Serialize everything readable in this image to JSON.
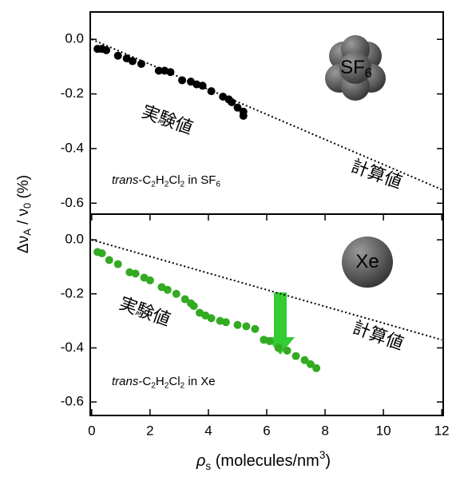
{
  "chart_data": [
    {
      "type": "scatter",
      "ylabel": [
        {
          "text": "Δν"
        },
        {
          "text": "A",
          "sub": true
        },
        {
          "text": " / ν"
        },
        {
          "text": "0",
          "sub": true
        },
        {
          "text": " (%)"
        }
      ],
      "xlim": [
        -0.05,
        12.05
      ],
      "ylim": [
        -0.64,
        0.1
      ],
      "yticks": [
        {
          "value": 0,
          "label": "0.0"
        },
        -0.2,
        -0.4,
        -0.6
      ],
      "molecule_label": [
        {
          "text": "SF"
        },
        {
          "text": "6",
          "sub": true
        }
      ],
      "sample_label": [
        {
          "text": "trans",
          "italic": true
        },
        {
          "text": "-C"
        },
        {
          "text": "2",
          "sub": true
        },
        {
          "text": "H"
        },
        {
          "text": "2",
          "sub": true
        },
        {
          "text": "Cl"
        },
        {
          "text": "2",
          "sub": true
        },
        {
          "text": " in SF"
        },
        {
          "text": "6",
          "sub": true
        }
      ],
      "series": [
        {
          "name": "実験値",
          "color": "#000000",
          "style": "dots",
          "x": [
            0.2,
            0.35,
            0.5,
            0.9,
            1.2,
            1.4,
            1.7,
            2.3,
            2.5,
            2.7,
            3.1,
            3.4,
            3.6,
            3.8,
            4.1,
            4.5,
            4.7,
            4.8,
            5.0,
            5.2,
            5.2
          ],
          "values": [
            -0.035,
            -0.035,
            -0.04,
            -0.06,
            -0.07,
            -0.08,
            -0.09,
            -0.115,
            -0.115,
            -0.12,
            -0.15,
            -0.155,
            -0.165,
            -0.17,
            -0.19,
            -0.21,
            -0.22,
            -0.23,
            -0.25,
            -0.265,
            -0.28
          ]
        },
        {
          "name": "計算値",
          "color": "#000000",
          "style": "dotted-line",
          "x": [
            0,
            12
          ],
          "values": [
            0,
            -0.55
          ]
        }
      ]
    },
    {
      "type": "scatter",
      "xlabel": [
        {
          "text": "ρ",
          "italic": true
        },
        {
          "text": "s",
          "sub": true
        },
        {
          "text": " (molecules/nm"
        },
        {
          "text": "3",
          "sup": true
        },
        {
          "text": ")"
        }
      ],
      "xlim": [
        -0.05,
        12.05
      ],
      "ylim": [
        -0.65,
        0.095
      ],
      "xticks": [
        0,
        2,
        4,
        6,
        8,
        10,
        12
      ],
      "yticks": [
        {
          "value": 0,
          "label": "0.0"
        },
        -0.2,
        -0.4,
        -0.6
      ],
      "molecule_label": [
        {
          "text": "Xe"
        }
      ],
      "sample_label": [
        {
          "text": "trans",
          "italic": true
        },
        {
          "text": "-C"
        },
        {
          "text": "2",
          "sub": true
        },
        {
          "text": "H"
        },
        {
          "text": "2",
          "sub": true
        },
        {
          "text": "Cl"
        },
        {
          "text": "2",
          "sub": true
        },
        {
          "text": " in Xe"
        }
      ],
      "series": [
        {
          "name": "実験値",
          "color": "#33aa22",
          "style": "dots",
          "x": [
            0.2,
            0.35,
            0.6,
            0.9,
            1.3,
            1.5,
            1.8,
            2.0,
            2.4,
            2.6,
            2.9,
            3.2,
            3.4,
            3.5,
            3.7,
            3.9,
            4.1,
            4.4,
            4.6,
            5.0,
            5.3,
            5.6,
            5.9,
            6.1,
            6.4,
            6.7,
            7.0,
            7.3,
            7.5,
            7.7
          ],
          "values": [
            -0.045,
            -0.05,
            -0.075,
            -0.09,
            -0.12,
            -0.125,
            -0.14,
            -0.15,
            -0.175,
            -0.185,
            -0.2,
            -0.22,
            -0.235,
            -0.245,
            -0.27,
            -0.28,
            -0.29,
            -0.3,
            -0.305,
            -0.315,
            -0.32,
            -0.33,
            -0.37,
            -0.375,
            -0.4,
            -0.41,
            -0.43,
            -0.445,
            -0.46,
            -0.475
          ]
        },
        {
          "name": "計算値",
          "color": "#000000",
          "style": "dotted-line",
          "x": [
            0,
            12
          ],
          "values": [
            0,
            -0.37
          ]
        }
      ]
    }
  ]
}
